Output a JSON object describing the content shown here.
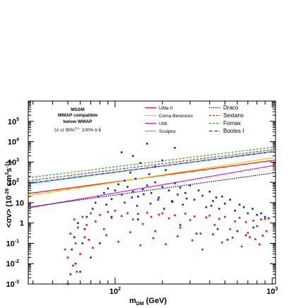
{
  "chart_data": {
    "type": "scatter",
    "title": "",
    "xlabel": {
      "main": "m",
      "sub": "DM",
      "unit": " (GeV)"
    },
    "ylabel": {
      "pre": "<σv> (10",
      "sup": "-26",
      "post": " cm",
      "sup2": "3",
      "post2": "s",
      "sup3": "-1",
      "close": ")"
    },
    "x_scale": "log",
    "y_scale": "log",
    "xlim": [
      28,
      1050
    ],
    "ylim": [
      0.001,
      1000000
    ],
    "x_ticks": [
      {
        "value": 100,
        "label": "10",
        "exp": "2"
      },
      {
        "value": 1000,
        "label": "10",
        "exp": "3"
      }
    ],
    "y_ticks": [
      {
        "value": 0.001,
        "label": "10",
        "exp": "-3"
      },
      {
        "value": 0.01,
        "label": "10",
        "exp": "-2"
      },
      {
        "value": 0.1,
        "label": "10",
        "exp": "-1"
      },
      {
        "value": 1,
        "label": "1",
        "exp": ""
      },
      {
        "value": 10,
        "label": "10",
        "exp": ""
      },
      {
        "value": 100,
        "label": "10",
        "exp": "2"
      },
      {
        "value": 1000,
        "label": "10",
        "exp": "3"
      },
      {
        "value": 10000,
        "label": "10",
        "exp": "4"
      },
      {
        "value": 100000,
        "label": "10",
        "exp": "5"
      }
    ],
    "legend_left": {
      "title": "MSSM",
      "wmap_compatible": "WMAP compatible",
      "below_wmap": "below WMAP",
      "band": "⟨σ v⟩ 95%",
      "band_sup": "C.L.",
      "band_suffix": " 100% b b̄",
      "colors": {
        "wmap_compatible": "#e8141c",
        "below_wmap": "#1a22d8",
        "band": "#22bb22"
      }
    },
    "series": [
      {
        "name": "UMa II",
        "color": "#e8141c",
        "dash": "solid",
        "x": [
          28,
          1050
        ],
        "y": [
          28,
          1250
        ]
      },
      {
        "name": "Coma Berenices",
        "color": "#f4c000",
        "dash": "solid",
        "x": [
          28,
          1050
        ],
        "y": [
          22,
          1700
        ]
      },
      {
        "name": "UMi",
        "color": "#d61ad6",
        "dash": "solid",
        "x": [
          28,
          1050
        ],
        "y": [
          5.5,
          700
        ]
      },
      {
        "name": "Sculptor",
        "color": "#1ec8c8",
        "dash": "solid",
        "x": [
          28,
          1050
        ],
        "y": [
          85,
          3500
        ]
      },
      {
        "name": "Draco",
        "color": "#000000",
        "dash": "dotted",
        "x": [
          28,
          1050
        ],
        "y": [
          6,
          300
        ]
      },
      {
        "name": "Sextans",
        "color": "#e8141c",
        "dash": "dashed",
        "x": [
          28,
          1050
        ],
        "y": [
          120,
          4200
        ]
      },
      {
        "name": "Fornax",
        "color": "#22bb22",
        "dash": "dashed",
        "x": [
          28,
          1050
        ],
        "y": [
          170,
          5600
        ]
      },
      {
        "name": "Bootes I",
        "color": "#1a22d8",
        "dash": "dashdot",
        "x": [
          28,
          1050
        ],
        "y": [
          90,
          3300
        ]
      }
    ],
    "scatter_groups": [
      {
        "name": "WMAP compatible",
        "color": "#e8141c",
        "points": [
          [
            48,
            0.05
          ],
          [
            50,
            0.02
          ],
          [
            52,
            0.3
          ],
          [
            54,
            0.008
          ],
          [
            55,
            1.5
          ],
          [
            56,
            0.1
          ],
          [
            57,
            0.004
          ],
          [
            58,
            0.6
          ],
          [
            60,
            0.03
          ],
          [
            62,
            2
          ],
          [
            64,
            0.2
          ],
          [
            66,
            0.8
          ],
          [
            70,
            3
          ],
          [
            75,
            1.2
          ],
          [
            80,
            2.5
          ],
          [
            85,
            0.5
          ],
          [
            90,
            3.5
          ],
          [
            95,
            1.8
          ],
          [
            100,
            4
          ],
          [
            110,
            2.2
          ],
          [
            120,
            3
          ],
          [
            130,
            1.5
          ],
          [
            140,
            2.8
          ],
          [
            150,
            0.9
          ],
          [
            160,
            3.2
          ],
          [
            170,
            2
          ],
          [
            180,
            0.4
          ],
          [
            190,
            2.6
          ],
          [
            200,
            3
          ],
          [
            220,
            1.7
          ],
          [
            240,
            2.4
          ],
          [
            260,
            0.6
          ],
          [
            280,
            2.9
          ],
          [
            300,
            1.4
          ],
          [
            320,
            2.1
          ],
          [
            350,
            0.3
          ],
          [
            380,
            1.9
          ],
          [
            400,
            2.3
          ],
          [
            430,
            0.8
          ],
          [
            460,
            1.6
          ],
          [
            500,
            2
          ],
          [
            540,
            0.5
          ],
          [
            580,
            1.2
          ],
          [
            620,
            1.8
          ],
          [
            680,
            1.1
          ],
          [
            720,
            0.2
          ],
          [
            760,
            1.3
          ],
          [
            800,
            0.7
          ],
          [
            850,
            1.5
          ],
          [
            900,
            1.6
          ],
          [
            68,
            0.15
          ],
          [
            72,
            0.06
          ],
          [
            88,
            0.25
          ],
          [
            105,
            0.12
          ],
          [
            125,
            0.35
          ],
          [
            145,
            0.08
          ],
          [
            175,
            0.18
          ],
          [
            210,
            0.09
          ],
          [
            250,
            0.22
          ],
          [
            310,
            0.14
          ],
          [
            360,
            0.05
          ],
          [
            420,
            0.28
          ],
          [
            480,
            0.11
          ],
          [
            560,
            0.19
          ],
          [
            640,
            0.07
          ],
          [
            700,
            0.33
          ],
          [
            780,
            0.16
          ],
          [
            830,
            0.09
          ],
          [
            870,
            0.24
          ],
          [
            920,
            0.4
          ]
        ]
      },
      {
        "name": "below WMAP",
        "color": "#1a22d8",
        "points": [
          [
            50,
            0.001
          ],
          [
            52,
            0.003
          ],
          [
            53,
            0.05
          ],
          [
            55,
            0.2
          ],
          [
            56,
            0.01
          ],
          [
            58,
            1
          ],
          [
            60,
            0.004
          ],
          [
            62,
            0.1
          ],
          [
            64,
            0.5
          ],
          [
            66,
            2
          ],
          [
            70,
            0.02
          ],
          [
            72,
            5
          ],
          [
            75,
            10
          ],
          [
            78,
            20
          ],
          [
            80,
            0.1
          ],
          [
            85,
            30
          ],
          [
            88,
            8
          ],
          [
            90,
            50
          ],
          [
            95,
            15
          ],
          [
            100,
            40
          ],
          [
            105,
            80
          ],
          [
            110,
            25
          ],
          [
            115,
            120
          ],
          [
            120,
            60
          ],
          [
            125,
            300
          ],
          [
            130,
            35
          ],
          [
            135,
            150
          ],
          [
            140,
            20
          ],
          [
            145,
            900
          ],
          [
            150,
            45
          ],
          [
            160,
            70
          ],
          [
            165,
            250
          ],
          [
            170,
            30
          ],
          [
            180,
            100
          ],
          [
            190,
            18
          ],
          [
            200,
            60
          ],
          [
            210,
            400
          ],
          [
            220,
            40
          ],
          [
            230,
            12
          ],
          [
            240,
            90
          ],
          [
            250,
            25
          ],
          [
            260,
            55
          ],
          [
            270,
            8
          ],
          [
            280,
            30
          ],
          [
            300,
            70
          ],
          [
            320,
            14
          ],
          [
            340,
            40
          ],
          [
            360,
            22
          ],
          [
            380,
            6
          ],
          [
            400,
            35
          ],
          [
            420,
            12
          ],
          [
            440,
            18
          ],
          [
            460,
            5
          ],
          [
            480,
            20
          ],
          [
            500,
            9
          ],
          [
            540,
            14
          ],
          [
            580,
            4
          ],
          [
            620,
            8
          ],
          [
            660,
            6
          ],
          [
            700,
            3
          ],
          [
            750,
            5
          ],
          [
            800,
            2.5
          ],
          [
            850,
            3
          ],
          [
            900,
            2
          ],
          [
            950,
            1.7
          ],
          [
            130,
            2000
          ],
          [
            160,
            8000
          ],
          [
            110,
            3000
          ],
          [
            200,
            1200
          ],
          [
            240,
            5000
          ],
          [
            180,
            600
          ],
          [
            95,
            2
          ],
          [
            140,
            1.5
          ],
          [
            260,
            0.8
          ],
          [
            330,
            0.3
          ],
          [
            450,
            0.5
          ],
          [
            520,
            0.15
          ],
          [
            600,
            0.4
          ],
          [
            680,
            0.25
          ],
          [
            760,
            0.6
          ],
          [
            115,
            10
          ],
          [
            128,
            18
          ],
          [
            138,
            7
          ],
          [
            152,
            26
          ],
          [
            168,
            9
          ],
          [
            188,
            14
          ],
          [
            205,
            5
          ],
          [
            232,
            11
          ],
          [
            285,
            16
          ],
          [
            410,
            7
          ]
        ]
      }
    ]
  }
}
